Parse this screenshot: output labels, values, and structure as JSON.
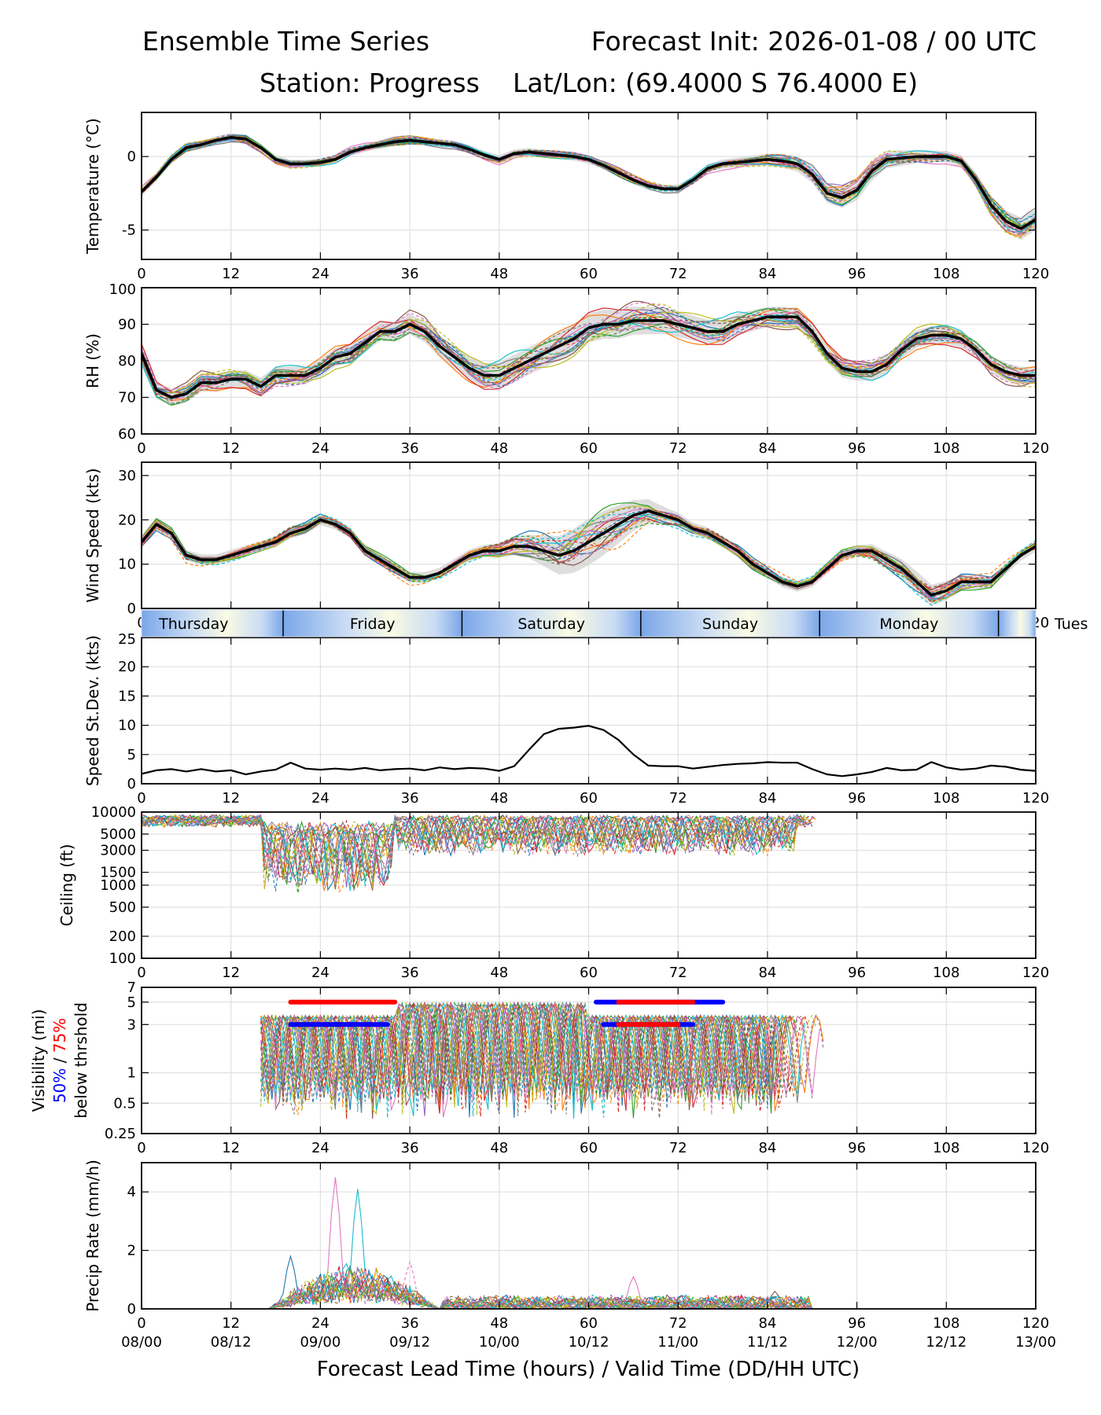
{
  "header": {
    "title_left": "Ensemble Time Series",
    "title_right": "Forecast Init: 2026-01-08 / 00 UTC",
    "station": "Station: Progress",
    "latlon": "Lat/Lon: (69.4000 S 76.4000 E)"
  },
  "colors": {
    "mean": "#000000",
    "spread_band": "#c8c8c8",
    "grid": "#e0e0e0",
    "day_band_light": "#fbfbe3",
    "day_band_blue": "#7aa6e8",
    "vis_50": "#0000ff",
    "vis_75": "#ff0000",
    "members": [
      "#1f77b4",
      "#ff7f0e",
      "#2ca02c",
      "#d62728",
      "#9467bd",
      "#8c564b",
      "#e377c2",
      "#7f7f7f",
      "#bcbd22",
      "#17becf"
    ]
  },
  "chart_data": {
    "type": "line",
    "x_range": [
      0,
      120
    ],
    "x_ticks": [
      0,
      12,
      24,
      36,
      48,
      60,
      72,
      84,
      96,
      108,
      120
    ],
    "valid_time_labels": [
      "08/00",
      "08/12",
      "09/00",
      "09/12",
      "10/00",
      "10/12",
      "11/00",
      "11/12",
      "12/00",
      "12/12",
      "13/00"
    ],
    "xlabel": "Forecast Lead Time (hours) / Valid Time (DD/HH UTC)",
    "day_band": {
      "labels": [
        "Thursday",
        "Friday",
        "Saturday",
        "Sunday",
        "Monday",
        "Tues"
      ],
      "centers": [
        7,
        31,
        55,
        79,
        103,
        128
      ],
      "dividers": [
        19,
        43,
        67,
        91,
        115
      ]
    },
    "panels": [
      {
        "id": "temperature",
        "ylabel": "Temperature (°C)",
        "ylim": [
          -7,
          3
        ],
        "scale": "linear",
        "yticks": [
          -5,
          0
        ],
        "series": [
          {
            "name": "ensemble mean",
            "x": [
              0,
              2,
              4,
              6,
              8,
              10,
              12,
              14,
              16,
              18,
              20,
              22,
              24,
              26,
              28,
              30,
              32,
              34,
              36,
              38,
              40,
              42,
              44,
              46,
              48,
              50,
              52,
              54,
              56,
              58,
              60,
              62,
              64,
              66,
              68,
              70,
              72,
              74,
              76,
              78,
              80,
              82,
              84,
              86,
              88,
              90,
              92,
              94,
              96,
              98,
              100,
              102,
              104,
              106,
              108,
              110,
              112,
              114,
              116,
              118,
              120
            ],
            "y": [
              -2.4,
              -1.4,
              -0.2,
              0.6,
              0.8,
              1.1,
              1.3,
              1.2,
              0.6,
              -0.2,
              -0.5,
              -0.5,
              -0.4,
              -0.2,
              0.3,
              0.6,
              0.8,
              1.0,
              1.1,
              1.0,
              0.9,
              0.8,
              0.5,
              0.1,
              -0.2,
              0.2,
              0.3,
              0.2,
              0.1,
              0.0,
              -0.2,
              -0.6,
              -1.1,
              -1.6,
              -2.0,
              -2.2,
              -2.2,
              -1.6,
              -0.8,
              -0.5,
              -0.4,
              -0.3,
              -0.2,
              -0.3,
              -0.5,
              -1.2,
              -2.5,
              -2.8,
              -2.3,
              -1.0,
              -0.2,
              -0.1,
              0.0,
              0.0,
              0.0,
              -0.3,
              -1.6,
              -3.3,
              -4.4,
              -4.9,
              -4.3
            ]
          }
        ]
      },
      {
        "id": "rh",
        "ylabel": "RH (%)",
        "ylim": [
          60,
          100
        ],
        "scale": "linear",
        "yticks": [
          60,
          70,
          80,
          90,
          100
        ],
        "series": [
          {
            "name": "ensemble mean",
            "x": [
              0,
              2,
              4,
              6,
              8,
              10,
              12,
              14,
              16,
              18,
              20,
              22,
              24,
              26,
              28,
              30,
              32,
              34,
              36,
              38,
              40,
              42,
              44,
              46,
              48,
              50,
              52,
              54,
              56,
              58,
              60,
              62,
              64,
              66,
              68,
              70,
              72,
              74,
              76,
              78,
              80,
              82,
              84,
              86,
              88,
              90,
              92,
              94,
              96,
              98,
              100,
              102,
              104,
              106,
              108,
              110,
              112,
              114,
              116,
              118,
              120
            ],
            "y": [
              82,
              72,
              70,
              71,
              74,
              74,
              75,
              75,
              73,
              76,
              76,
              76,
              78,
              81,
              82,
              85,
              88,
              88,
              90,
              88,
              84,
              81,
              78,
              76,
              76,
              78,
              80,
              82,
              84,
              86,
              89,
              90,
              90,
              91,
              91,
              91,
              90,
              89,
              88,
              88,
              90,
              91,
              92,
              92,
              92,
              88,
              82,
              78,
              77,
              77,
              79,
              83,
              86,
              87,
              87,
              86,
              83,
              79,
              77,
              76,
              76
            ]
          }
        ]
      },
      {
        "id": "wind_speed",
        "ylabel": "Wind Speed (kts)",
        "ylim": [
          0,
          33
        ],
        "scale": "linear",
        "yticks": [
          0,
          10,
          20,
          30
        ],
        "series": [
          {
            "name": "ensemble mean",
            "x": [
              0,
              2,
              4,
              6,
              8,
              10,
              12,
              14,
              16,
              18,
              20,
              22,
              24,
              26,
              28,
              30,
              32,
              34,
              36,
              38,
              40,
              42,
              44,
              46,
              48,
              50,
              52,
              54,
              56,
              58,
              60,
              62,
              64,
              66,
              68,
              70,
              72,
              74,
              76,
              78,
              80,
              82,
              84,
              86,
              88,
              90,
              92,
              94,
              96,
              98,
              100,
              102,
              104,
              106,
              108,
              110,
              112,
              114,
              116,
              118,
              120
            ],
            "y": [
              15,
              19,
              17,
              12,
              11,
              11,
              12,
              13,
              14,
              15,
              17,
              18,
              20,
              19,
              17,
              13,
              11,
              9,
              7,
              7,
              8,
              10,
              12,
              13,
              13,
              14,
              14,
              13,
              12,
              13,
              15,
              17,
              19,
              21,
              22,
              21,
              20,
              18,
              17,
              15,
              13,
              10,
              8,
              6,
              5,
              6,
              9,
              12,
              13,
              13,
              11,
              9,
              6,
              3,
              4,
              6,
              6,
              6,
              9,
              12,
              14
            ]
          }
        ]
      },
      {
        "id": "speed_stdev",
        "ylabel": "Speed St.Dev. (kts)",
        "ylim": [
          0,
          25
        ],
        "scale": "linear",
        "yticks": [
          0,
          5,
          10,
          15,
          20,
          25
        ],
        "series": [
          {
            "name": "ensemble st.dev.",
            "x": [
              0,
              2,
              4,
              6,
              8,
              10,
              12,
              14,
              16,
              18,
              20,
              22,
              24,
              26,
              28,
              30,
              32,
              34,
              36,
              38,
              40,
              42,
              44,
              46,
              48,
              50,
              52,
              54,
              56,
              58,
              60,
              62,
              64,
              66,
              68,
              70,
              72,
              74,
              76,
              78,
              80,
              82,
              84,
              86,
              88,
              90,
              92,
              94,
              96,
              98,
              100,
              102,
              104,
              106,
              108,
              110,
              112,
              114,
              116,
              118,
              120
            ],
            "y": [
              1.7,
              2.3,
              2.5,
              2.1,
              2.5,
              2.1,
              2.3,
              1.6,
              2.1,
              2.4,
              3.6,
              2.6,
              2.4,
              2.6,
              2.4,
              2.7,
              2.3,
              2.5,
              2.6,
              2.3,
              2.8,
              2.5,
              2.7,
              2.6,
              2.2,
              3.0,
              5.8,
              8.5,
              9.4,
              9.6,
              9.9,
              9.2,
              7.5,
              5.0,
              3.1,
              3.0,
              3.0,
              2.6,
              2.9,
              3.2,
              3.4,
              3.5,
              3.7,
              3.6,
              3.6,
              2.5,
              1.6,
              1.3,
              1.6,
              2.0,
              2.7,
              2.3,
              2.4,
              3.7,
              2.8,
              2.4,
              2.6,
              3.1,
              2.9,
              2.4,
              2.2
            ]
          }
        ]
      },
      {
        "id": "ceiling",
        "ylabel": "Ceiling (ft)",
        "ylim": [
          100,
          10000
        ],
        "scale": "log",
        "yticks": [
          100,
          200,
          500,
          1000,
          1500,
          3000,
          5000,
          10000
        ]
      },
      {
        "id": "visibility",
        "ylabel": "Visibility (mi)",
        "ylabel_50": "50%",
        "ylabel_sep": " / ",
        "ylabel_75": "75%",
        "ylabel_below": "below thrshold",
        "ylim": [
          0.25,
          7
        ],
        "scale": "log",
        "yticks": [
          0.25,
          0.5,
          1,
          3,
          5,
          7
        ],
        "threshold_bars": [
          {
            "color": "red",
            "y": 5,
            "x0": 20,
            "x1": 34
          },
          {
            "color": "red",
            "y": 3,
            "x0": 21,
            "x1": 31
          },
          {
            "color": "blue",
            "y": 3,
            "x0": 20,
            "x1": 33
          },
          {
            "color": "blue",
            "y": 5,
            "x0": 61,
            "x1": 78
          },
          {
            "color": "red",
            "y": 5,
            "x0": 64,
            "x1": 74
          },
          {
            "color": "blue",
            "y": 3,
            "x0": 62,
            "x1": 74
          },
          {
            "color": "red",
            "y": 3,
            "x0": 64,
            "x1": 72
          }
        ]
      },
      {
        "id": "precip_rate",
        "ylabel": "Precip Rate (mm/h)",
        "ylim": [
          0,
          5
        ],
        "scale": "linear",
        "yticks": [
          0,
          2,
          4
        ],
        "peaks": [
          {
            "x": 26,
            "y": 4.5
          },
          {
            "x": 29,
            "y": 4.1
          },
          {
            "x": 20,
            "y": 1.8
          },
          {
            "x": 36,
            "y": 1.6
          },
          {
            "x": 66,
            "y": 1.1
          },
          {
            "x": 85,
            "y": 0.6
          }
        ]
      }
    ]
  }
}
